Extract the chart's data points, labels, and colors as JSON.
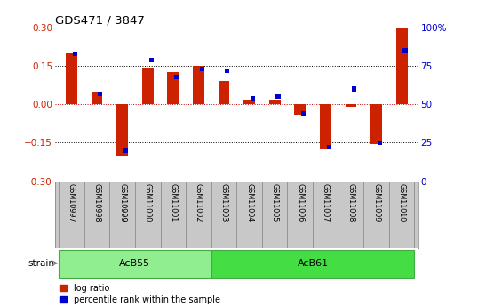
{
  "title": "GDS471 / 3847",
  "samples": [
    "GSM10997",
    "GSM10998",
    "GSM10999",
    "GSM11000",
    "GSM11001",
    "GSM11002",
    "GSM11003",
    "GSM11004",
    "GSM11005",
    "GSM11006",
    "GSM11007",
    "GSM11008",
    "GSM11009",
    "GSM11010"
  ],
  "log_ratio": [
    0.2,
    0.05,
    -0.2,
    0.142,
    0.125,
    0.152,
    0.09,
    0.02,
    0.02,
    -0.04,
    -0.175,
    -0.01,
    -0.155,
    0.3
  ],
  "percentile": [
    83,
    57,
    20,
    79,
    68,
    73,
    72,
    54,
    55,
    44,
    22,
    60,
    25,
    85
  ],
  "groups": [
    {
      "label": "AcB55",
      "start": 0,
      "end": 5,
      "color": "#90EE90"
    },
    {
      "label": "AcB61",
      "start": 6,
      "end": 13,
      "color": "#44DD44"
    }
  ],
  "ylim": [
    -0.3,
    0.3
  ],
  "y2lim": [
    0,
    100
  ],
  "yticks_left": [
    -0.3,
    -0.15,
    0.0,
    0.15,
    0.3
  ],
  "y2ticks": [
    0,
    25,
    50,
    75,
    100
  ],
  "log_color": "#CC2200",
  "pct_color": "#0000CC",
  "bg_color": "#FFFFFF",
  "zero_line_color": "#CC0000",
  "xlabels_bg": "#C8C8C8",
  "strain_label": "strain",
  "legend_items": [
    "log ratio",
    "percentile rank within the sample"
  ]
}
